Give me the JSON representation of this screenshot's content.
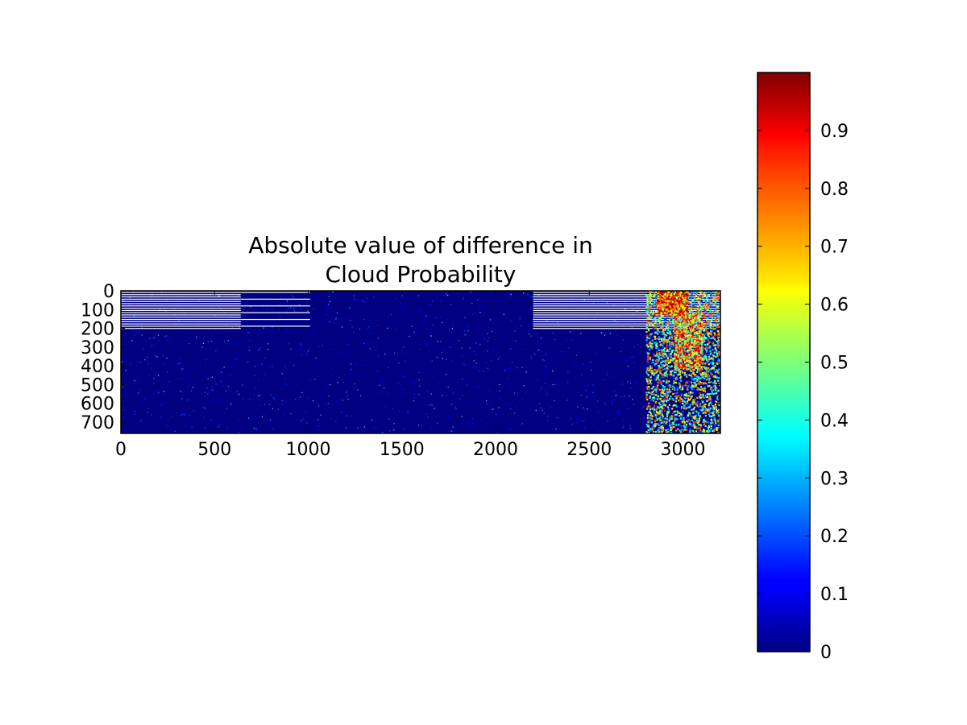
{
  "chart_data": {
    "type": "heatmap",
    "title": "Absolute value of difference in\nCloud Probability",
    "title_lines": [
      "Absolute value of difference in",
      "Cloud Probability"
    ],
    "xlabel": "",
    "ylabel": "",
    "xlim": [
      0,
      3200
    ],
    "ylim": [
      760,
      0
    ],
    "x_ticks": [
      0,
      500,
      1000,
      1500,
      2000,
      2500,
      3000
    ],
    "y_ticks": [
      0,
      100,
      200,
      300,
      400,
      500,
      600,
      700
    ],
    "grid": false,
    "colormap": "jet",
    "value_range": [
      0,
      1
    ],
    "colorbar": {
      "position": "right",
      "ticks": [
        0,
        0.1,
        0.2,
        0.3,
        0.4,
        0.5,
        0.6,
        0.7,
        0.8,
        0.9
      ],
      "tick_labels": [
        "0",
        "0.1",
        "0.2",
        "0.3",
        "0.4",
        "0.5",
        "0.6",
        "0.7",
        "0.8",
        "0.9"
      ],
      "max": 1.0
    },
    "background_value": 0.0,
    "notes_regions": [
      {
        "x": [
          0,
          640
        ],
        "y": [
          0,
          200
        ],
        "pattern": "horizontal-stripes",
        "value": 0.05
      },
      {
        "x": [
          640,
          1010
        ],
        "y": [
          0,
          200
        ],
        "pattern": "sparse-stripes",
        "value": 0.05
      },
      {
        "x": [
          2200,
          2570
        ],
        "y": [
          0,
          200
        ],
        "pattern": "horizontal-stripes",
        "value": 0.05
      },
      {
        "x": [
          2570,
          2830
        ],
        "y": [
          0,
          200
        ],
        "pattern": "horizontal-stripes",
        "value": 0.05
      },
      {
        "x": [
          2830,
          3200
        ],
        "y": [
          0,
          200
        ],
        "pattern": "horizontal-stripes",
        "value": 0.5
      }
    ],
    "hot_regions": [
      {
        "x": [
          2800,
          3200
        ],
        "y": [
          0,
          760
        ],
        "mean_value": 0.5,
        "max_value": 0.95
      },
      {
        "x": [
          2860,
          3020
        ],
        "y": [
          0,
          120
        ],
        "mean_value": 0.85,
        "max_value": 0.95
      },
      {
        "x": [
          2950,
          3100
        ],
        "y": [
          120,
          420
        ],
        "mean_value": 0.7,
        "max_value": 0.9
      }
    ]
  }
}
